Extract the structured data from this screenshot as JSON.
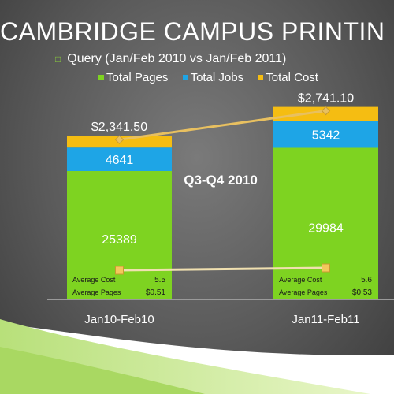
{
  "slide": {
    "title": "CAMBRIDGE CAMPUS PRINTIN",
    "bullet_icon": "square-bullet-icon",
    "subtitle": "Query (Jan/Feb 2010 vs Jan/Feb 2011)",
    "annotation": "Q3-Q4 2010"
  },
  "colors": {
    "pages": "#7ed321",
    "jobs": "#1ea5e6",
    "cost": "#f5bd12",
    "line": "#e8c060",
    "white_line": "#f0e0b0"
  },
  "chart_data": {
    "type": "bar",
    "stacked": true,
    "categories": [
      "Jan10-Feb10",
      "Jan11-Feb11"
    ],
    "series": [
      {
        "name": "Total Pages",
        "values": [
          25389,
          29984
        ],
        "labels": [
          "25389",
          "29984"
        ]
      },
      {
        "name": "Total Jobs",
        "values": [
          4641,
          5342
        ],
        "labels": [
          "4641",
          "5342"
        ]
      },
      {
        "name": "Total Cost",
        "values": [
          2341.5,
          2741.1
        ],
        "labels": [
          "$2,341.50",
          "$2,741.10"
        ]
      }
    ],
    "legend_position": "top",
    "table": [
      {
        "label": "Average Cost",
        "values": [
          "5.5",
          "5.6"
        ]
      },
      {
        "label": "Average Pages",
        "values": [
          "$0.51",
          "$0.53"
        ]
      }
    ],
    "lines": [
      {
        "series": "Total Cost",
        "values": [
          2341.5,
          2741.1
        ]
      },
      {
        "series": "Average Cost",
        "values": [
          5.5,
          5.6
        ]
      }
    ]
  }
}
